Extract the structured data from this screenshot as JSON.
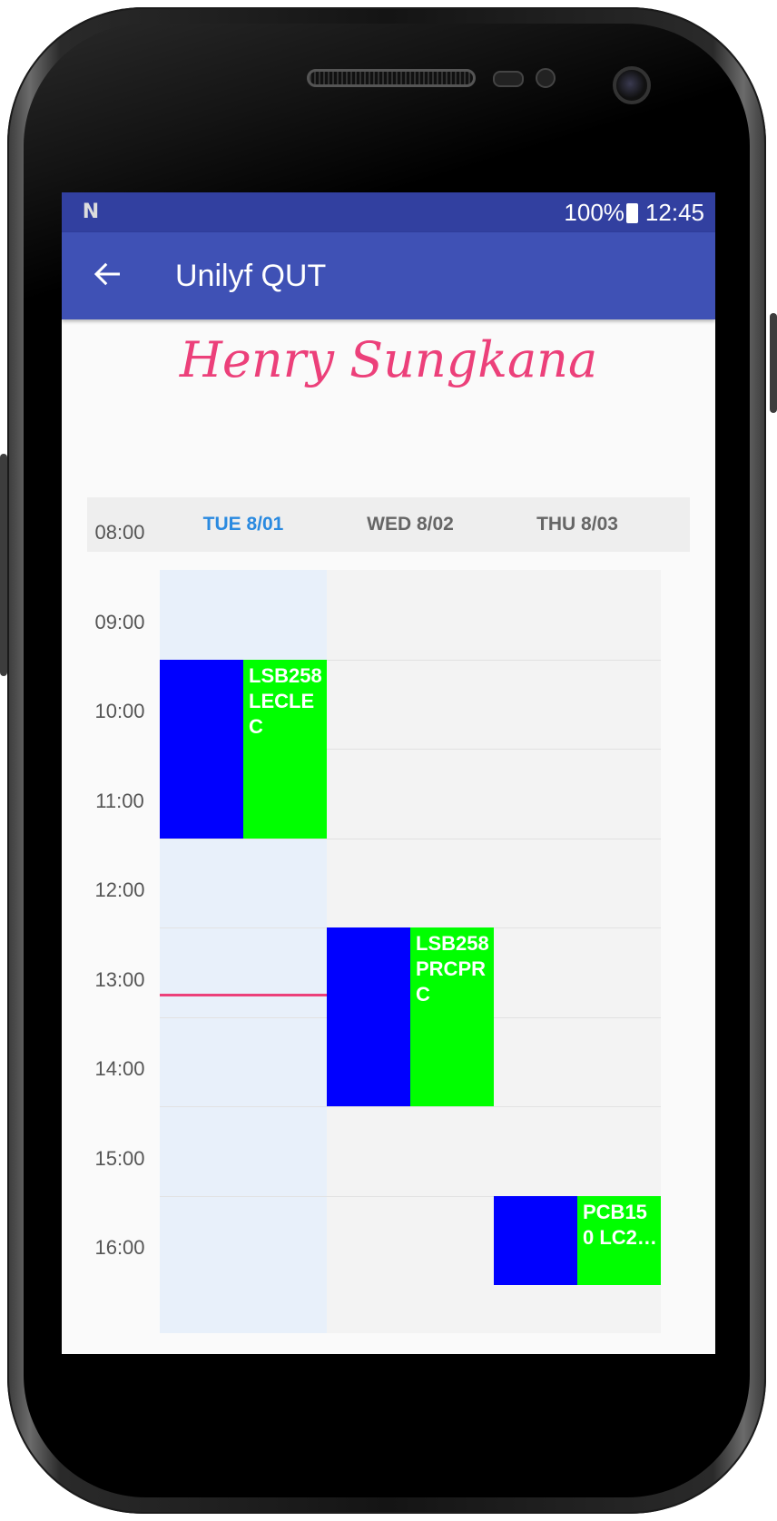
{
  "status_bar": {
    "left_icon": "N",
    "battery": "100%",
    "time": "12:45"
  },
  "app_bar": {
    "back_icon": "arrow-left-icon",
    "title": "Unilyf QUT"
  },
  "profile": {
    "name": "Henry Sungkana"
  },
  "calendar": {
    "days": [
      {
        "label": "TUE 8/01",
        "today": true
      },
      {
        "label": "WED 8/02",
        "today": false
      },
      {
        "label": "THU 8/03",
        "today": false
      }
    ],
    "hours": [
      "08:00",
      "09:00",
      "10:00",
      "11:00",
      "12:00",
      "13:00",
      "14:00",
      "15:00",
      "16:00"
    ],
    "events": [
      {
        "day": 0,
        "start": "09:00",
        "end": "11:00",
        "text": "LSB258 LECLEC"
      },
      {
        "day": 1,
        "start": "12:00",
        "end": "14:00",
        "text": "LSB258 PRCPRC"
      },
      {
        "day": 2,
        "start": "15:00",
        "end": "16:00",
        "text": "PCB150 LC2…"
      }
    ],
    "current_time": "12:45",
    "colors": {
      "event_primary": "#0000ff",
      "event_secondary": "#00ff00",
      "now_line": "#ec407a",
      "today_label": "#2a8ae0"
    }
  }
}
